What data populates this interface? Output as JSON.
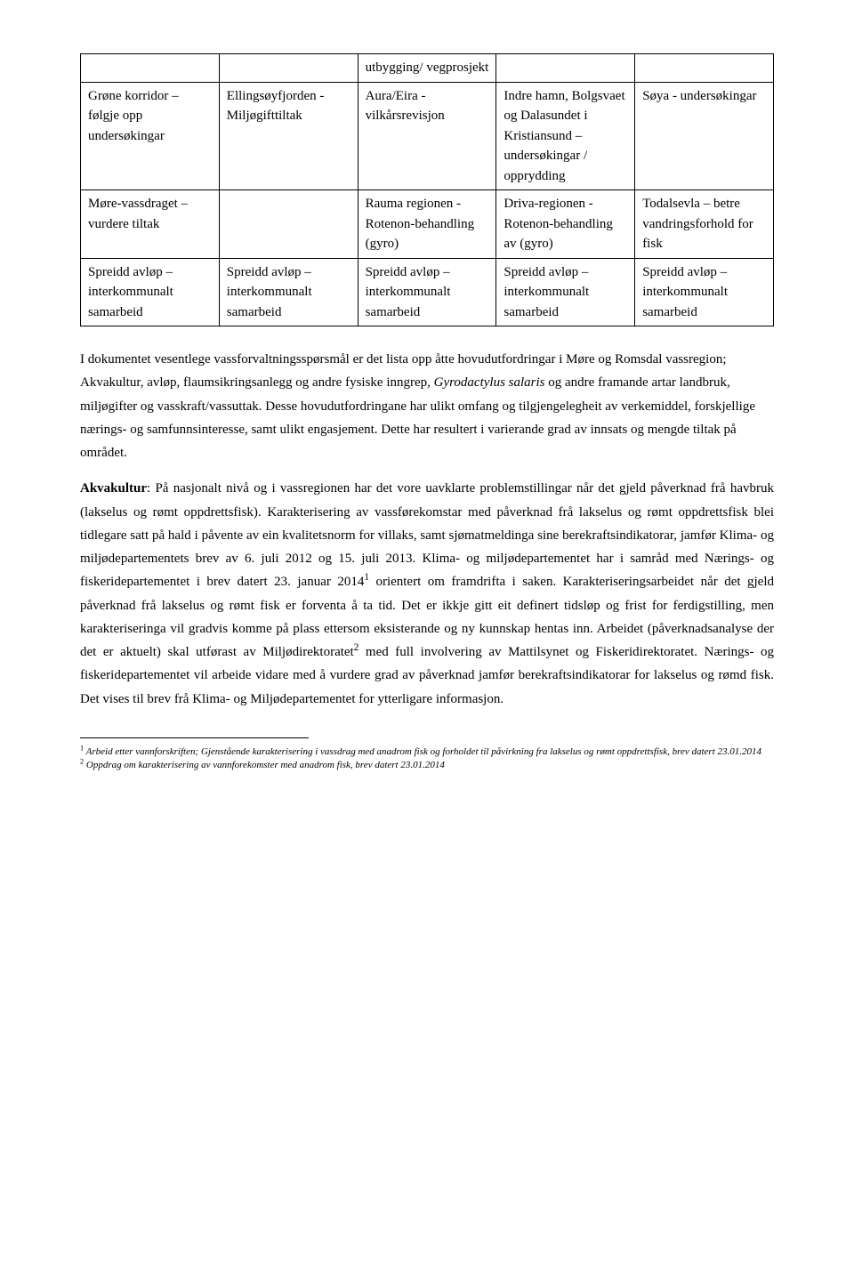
{
  "table": {
    "rows": [
      {
        "c1": "",
        "c2": "",
        "c3": "utbygging/ vegprosjekt",
        "c4": "",
        "c5": ""
      },
      {
        "c1": "Grøne korridor – følgje opp undersøkingar",
        "c2": "Ellingsøyfjorden -Miljøgifttiltak",
        "c3": "Aura/Eira - vilkårsrevisjon",
        "c4": "Indre hamn, Bolgsvaet og Dalasundet i Kristiansund – undersøkingar / opprydding",
        "c5": "Søya - undersøkingar"
      },
      {
        "c1": "Møre-vassdraget – vurdere tiltak",
        "c2": "",
        "c3": "Rauma regionen -Rotenon-behandling (gyro)",
        "c4": "Driva-regionen - Rotenon-behandling av (gyro)",
        "c5": "Todalsevla – betre vandringsforhold for fisk"
      },
      {
        "c1": "Spreidd avløp – interkommunalt samarbeid",
        "c2": "Spreidd avløp – interkommunalt samarbeid",
        "c3": "Spreidd avløp – interkommunalt samarbeid",
        "c4": "Spreidd avløp – interkommunalt samarbeid",
        "c5": "Spreidd avløp – interkommunalt samarbeid"
      }
    ]
  },
  "para1": {
    "pre": "I dokumentet vesentlege vassforvaltningsspørsmål er det lista opp åtte hovudutfordringar i Møre og Romsdal vassregion; Akvakultur, avløp, flaumsikringsanlegg og andre fysiske inngrep, ",
    "italic": "Gyrodactylus salaris",
    "post": " og andre framande artar landbruk, miljøgifter og vasskraft/vassuttak. Desse hovudutfordringane har ulikt omfang og tilgjengelegheit av verkemiddel, forskjellige nærings- og samfunnsinteresse, samt ulikt engasjement. Dette har resultert i varierande grad av innsats og mengde tiltak på området."
  },
  "para2": {
    "bold": "Akvakultur",
    "t1": ": På nasjonalt nivå og i vassregionen har det vore uavklarte problemstillingar når det gjeld påverknad frå havbruk (lakselus og rømt oppdrettsfisk). Karakterisering av vassførekomstar med påverknad frå lakselus og rømt oppdrettsfisk blei tidlegare satt på hald i påvente av ein kvalitetsnorm for villaks, samt sjømatmeldinga sine berekraftsindikatorar, jamfør Klima- og miljødepartementets brev av 6. juli 2012 og 15. juli 2013. Klima- og miljødepartementet har i samråd med Nærings- og fiskeridepartementet i brev datert 23. januar 2014",
    "sup1": "1",
    "t2": " orientert om framdrifta i saken. Karakteriseringsarbeidet når det gjeld påverknad frå lakselus og rømt fisk er forventa å ta tid. Det er ikkje gitt eit definert tidsløp og frist for ferdigstilling, men karakteriseringa vil gradvis komme på plass ettersom eksisterande og ny kunnskap hentas inn. Arbeidet (påverknadsanalyse der det er aktuelt) skal utførast av Miljødirektoratet",
    "sup2": "2",
    "t3": " med full involvering av Mattilsynet og Fiskeridirektoratet. Nærings- og fiskeridepartementet vil arbeide vidare med å vurdere grad av påverknad jamfør berekraftsindikatorar for lakselus og rømd fisk. Det vises til brev frå Klima- og Miljødepartementet for ytterligare informasjon."
  },
  "footnotes": {
    "fn1": {
      "num": "1",
      "text": " Arbeid etter vannforskriften; Gjenstående karakterisering i vassdrag med anadrom fisk og forholdet til påvirkning fra lakselus og rømt oppdrettsfisk, brev datert 23.01.2014"
    },
    "fn2": {
      "num": "2",
      "text": " Oppdrag om karakterisering av vannforekomster med anadrom fisk, brev datert 23.01.2014"
    }
  }
}
